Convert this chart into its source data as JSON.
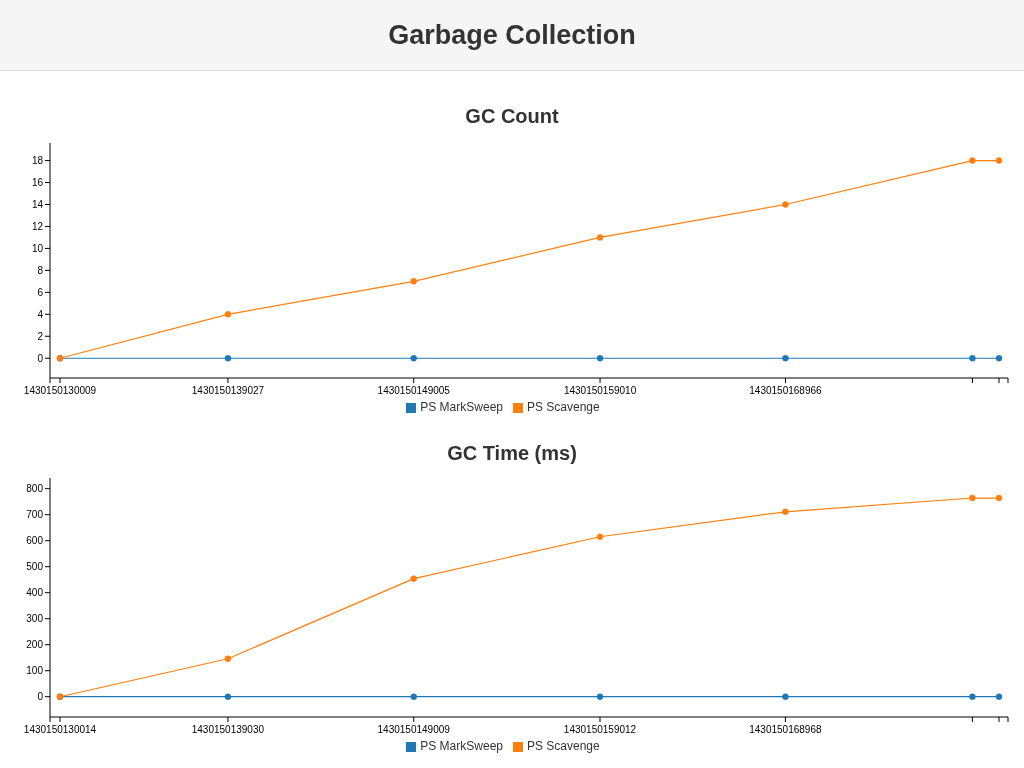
{
  "chart_data": [
    {
      "type": "other",
      "title": "Garbage Collection"
    },
    {
      "type": "line",
      "title": "GC Count",
      "x": [
        1430150130009,
        1430150139027,
        1430150149005,
        1430150159010,
        1430150168966,
        1430150179005,
        1430150180433
      ],
      "series": [
        {
          "name": "PS MarkSweep",
          "color": "#1f77b4",
          "values": [
            0,
            0,
            0,
            0,
            0,
            0,
            0
          ]
        },
        {
          "name": "PS Scavenge",
          "color": "#ff7f0e",
          "values": [
            0,
            4,
            7,
            11,
            14,
            18,
            18
          ]
        }
      ],
      "xlim": [
        1430150129472,
        1430150180916
      ],
      "xticks": [
        {
          "value": 1430150129472,
          "label": null
        },
        1430150130009,
        1430150139027,
        1430150149005,
        1430150159010,
        1430150168966,
        {
          "value": 1430150179005,
          "label": null
        },
        {
          "value": 1430150180433,
          "label": null
        },
        {
          "value": 1430150180916,
          "label": null
        }
      ],
      "ylim": [
        -1.8,
        19.6
      ],
      "yticks": [
        0,
        2,
        4,
        6,
        8,
        10,
        12,
        14,
        16,
        18
      ],
      "legend": "bottom",
      "marker": "circle",
      "line_style": "solid"
    },
    {
      "type": "line",
      "title": "GC Time (ms)",
      "x": [
        1430150130014,
        1430150139030,
        1430150149009,
        1430150159012,
        1430150168968,
        1430150179010,
        1430150180438
      ],
      "series": [
        {
          "name": "PS MarkSweep",
          "color": "#1f77b4",
          "values": [
            0,
            0,
            0,
            0,
            0,
            0,
            0
          ]
        },
        {
          "name": "PS Scavenge",
          "color": "#ff7f0e",
          "values": [
            0,
            146,
            454,
            615,
            711,
            764,
            764
          ]
        }
      ],
      "xlim": [
        1430150129477,
        1430150180921
      ],
      "xticks": [
        {
          "value": 1430150129477,
          "label": null
        },
        1430150130014,
        1430150139030,
        1430150149009,
        1430150159012,
        1430150168968,
        {
          "value": 1430150179010,
          "label": null
        },
        {
          "value": 1430150180438,
          "label": null
        },
        {
          "value": 1430150180921,
          "label": null
        }
      ],
      "ylim": [
        -78,
        841
      ],
      "yticks": [
        0,
        100,
        200,
        300,
        400,
        500,
        600,
        700,
        800
      ],
      "legend": "bottom",
      "marker": "circle",
      "line_style": "solid"
    }
  ]
}
